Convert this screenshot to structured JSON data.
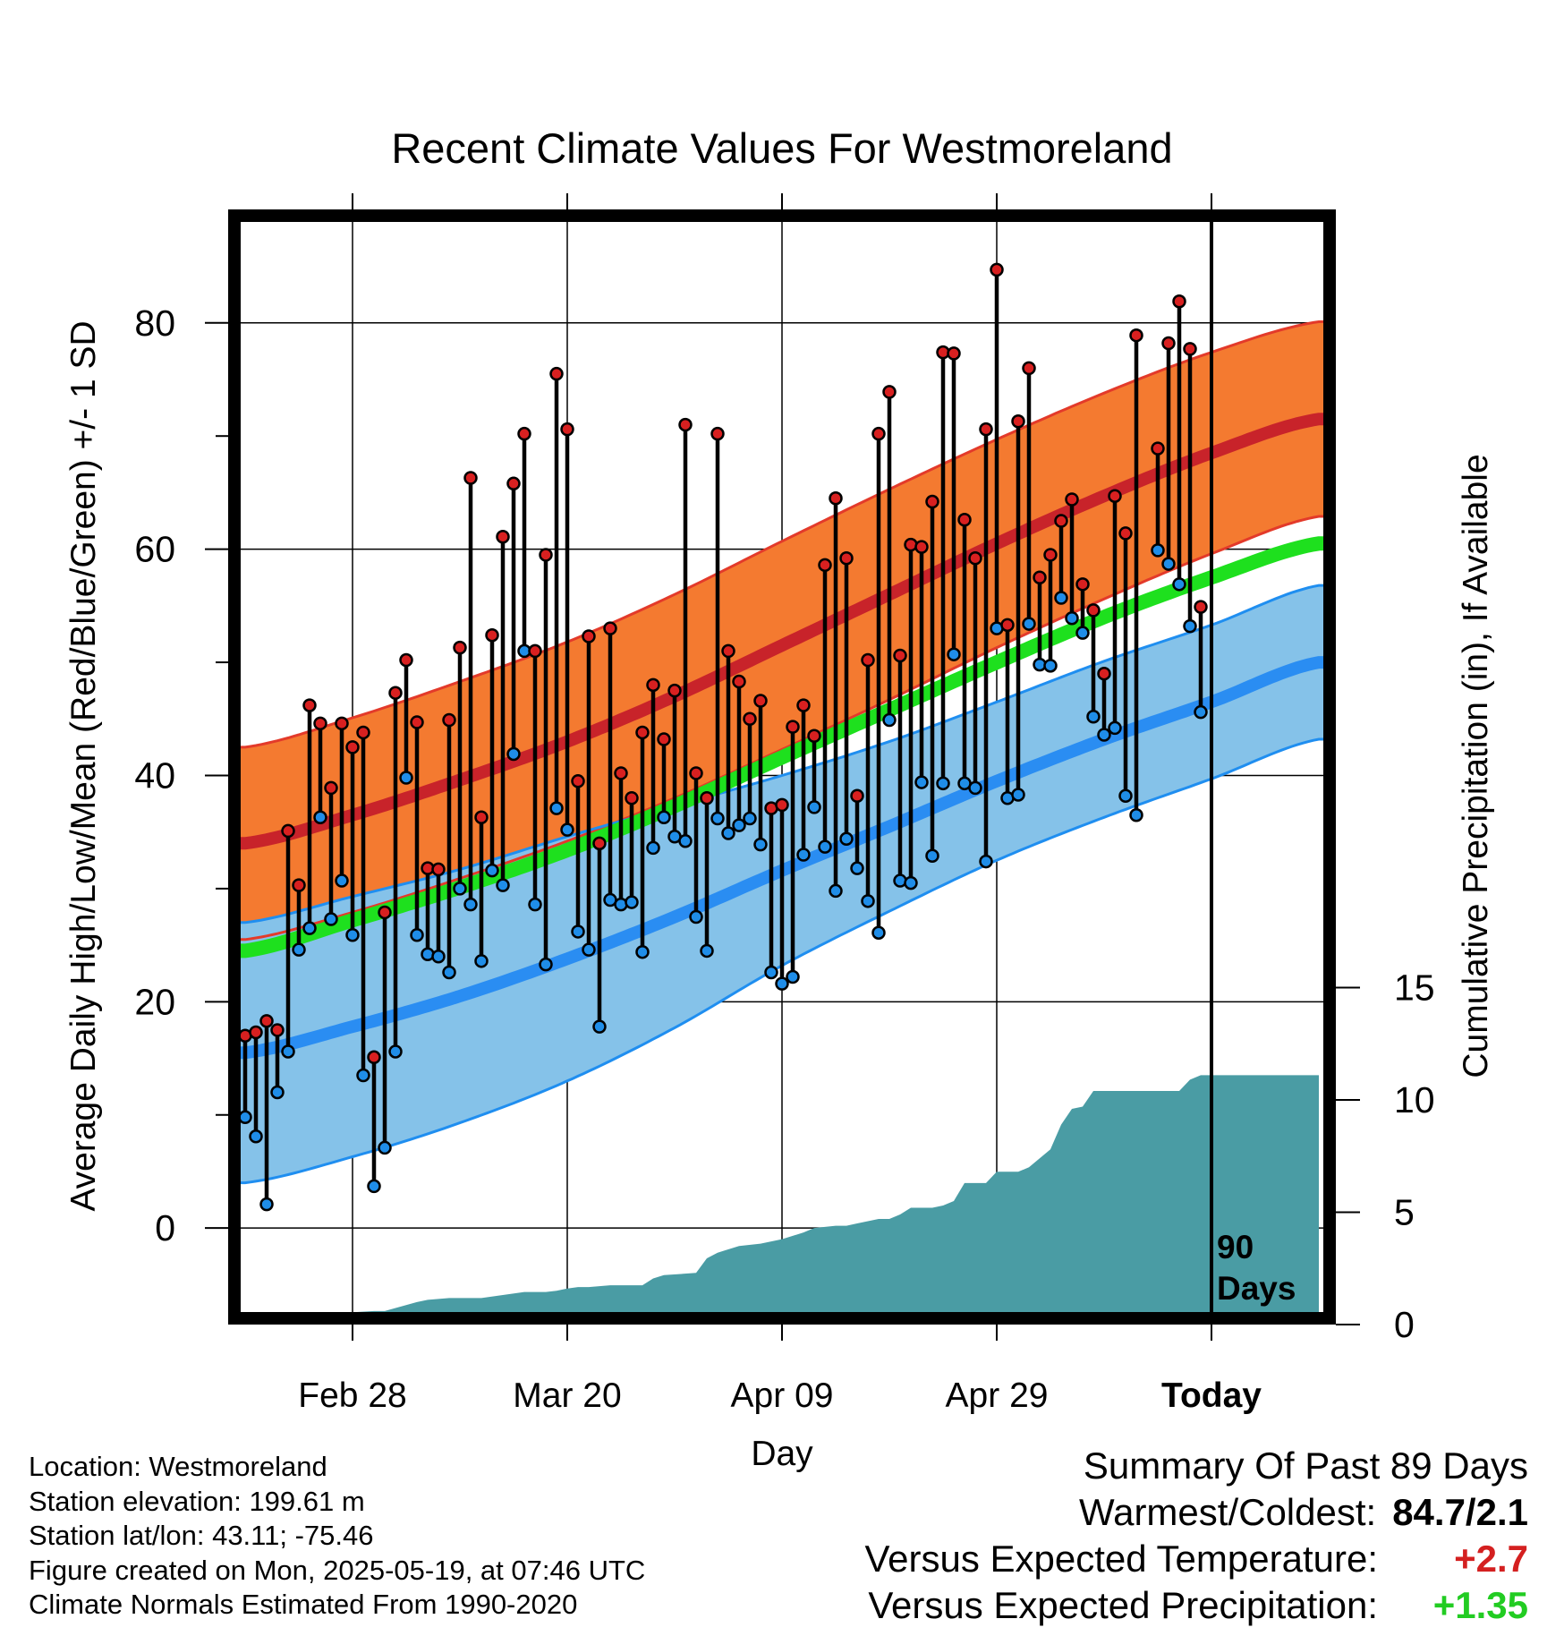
{
  "chart_data": {
    "type": "line",
    "title": "Recent Climate Values For Westmoreland",
    "xlabel": "Day",
    "ylabel": "Average Daily High/Low/Mean (Red/Blue/Green) +/- 1 SD",
    "y2label": "Cumulative Precipitation (in), If Available",
    "x_tick_labels": [
      "Feb 28",
      "Mar 20",
      "Apr 09",
      "Apr 29",
      "Today"
    ],
    "x_tick_days": [
      10,
      30,
      50,
      70,
      90
    ],
    "x_range_days": [
      -0.5,
      100.5
    ],
    "ylim": [
      -7.5,
      89
    ],
    "y_ticks": [
      0,
      20,
      40,
      60,
      80
    ],
    "y2lim": [
      0,
      28
    ],
    "y2_ticks": [
      0,
      5,
      10,
      15
    ],
    "today_day": 90,
    "today_label_line1": "90",
    "today_label_line2": "Days",
    "grid": true,
    "colors": {
      "high_band": "#f47a30",
      "high_mean": "#c8232a",
      "high_edge": "#e33a2a",
      "low_band": "#85c2e9",
      "low_mean": "#2a8df2",
      "low_edge": "#1f8ef0",
      "mean_normal": "#1ee01e",
      "precip": "#4a9ca4",
      "high_dot": "#d82020",
      "low_dot": "#1f8de8"
    },
    "normal_high": {
      "days": [
        0,
        10,
        20,
        30,
        40,
        50,
        60,
        70,
        80,
        90,
        100
      ],
      "values": [
        34.0,
        36.5,
        39.6,
        43.0,
        47.0,
        51.5,
        56.0,
        60.5,
        64.7,
        68.5,
        71.5
      ]
    },
    "normal_high_sd": [
      8.5,
      8.6,
      8.7,
      8.8,
      9.0,
      9.2,
      9.3,
      9.2,
      9.1,
      8.9,
      8.6
    ],
    "normal_low": {
      "days": [
        0,
        10,
        20,
        30,
        40,
        50,
        60,
        70,
        80,
        90,
        100
      ],
      "values": [
        15.5,
        17.8,
        20.5,
        23.8,
        27.5,
        31.6,
        35.5,
        39.5,
        43.2,
        46.5,
        50.0
      ]
    },
    "normal_low_sd": [
      11.5,
      11.5,
      11.2,
      10.8,
      9.8,
      8.4,
      7.5,
      7.0,
      6.9,
      6.8,
      6.8
    ],
    "normal_mean": {
      "days": [
        0,
        10,
        20,
        30,
        40,
        50,
        60,
        70,
        80,
        90,
        100
      ],
      "values": [
        24.5,
        27.2,
        30.1,
        33.4,
        37.3,
        41.6,
        45.8,
        50.0,
        54.0,
        57.5,
        60.5
      ]
    },
    "observed_days": [
      0,
      1,
      2,
      3,
      4,
      5,
      6,
      7,
      8,
      9,
      10,
      11,
      12,
      13,
      14,
      15,
      16,
      17,
      18,
      19,
      20,
      21,
      22,
      23,
      24,
      25,
      26,
      27,
      28,
      29,
      30,
      31,
      32,
      33,
      34,
      35,
      36,
      37,
      38,
      39,
      40,
      41,
      42,
      43,
      44,
      45,
      46,
      47,
      48,
      49,
      50,
      51,
      52,
      53,
      54,
      55,
      56,
      57,
      58,
      59,
      60,
      61,
      62,
      63,
      64,
      65,
      66,
      67,
      68,
      69,
      70,
      71,
      72,
      73,
      74,
      75,
      76,
      77,
      78,
      79,
      80,
      81,
      82,
      83,
      84,
      85,
      86,
      87,
      88,
      89
    ],
    "observed_high": [
      17.0,
      17.3,
      18.3,
      17.5,
      35.1,
      30.3,
      46.2,
      44.6,
      38.9,
      44.6,
      42.5,
      43.8,
      15.1,
      27.9,
      47.3,
      50.2,
      44.7,
      31.8,
      31.7,
      44.9,
      51.3,
      66.3,
      36.3,
      52.4,
      61.1,
      65.8,
      70.2,
      51.0,
      59.5,
      75.5,
      70.6,
      39.5,
      52.3,
      34.0,
      53.0,
      40.2,
      38.0,
      43.8,
      48.0,
      43.2,
      47.5,
      71.0,
      40.2,
      38.0,
      70.2,
      51.0,
      48.3,
      45.0,
      46.6,
      37.1,
      37.4,
      44.3,
      46.2,
      43.5,
      58.6,
      64.5,
      59.2,
      38.2,
      50.2,
      70.2,
      73.9,
      50.6,
      60.4,
      60.2,
      64.2,
      77.4,
      77.3,
      62.6,
      59.2,
      70.6,
      84.7,
      53.3,
      71.3,
      76.0,
      57.5,
      59.5,
      62.5,
      64.4,
      56.9,
      54.6,
      49.0,
      64.7,
      61.4,
      78.9,
      null,
      68.9,
      78.2,
      81.9,
      77.7,
      54.9
    ],
    "observed_low": [
      9.8,
      8.1,
      2.1,
      12.0,
      15.6,
      24.6,
      26.5,
      36.3,
      27.3,
      30.7,
      25.9,
      13.5,
      3.7,
      7.1,
      15.6,
      39.8,
      25.9,
      24.2,
      24.0,
      22.6,
      30.0,
      28.6,
      23.6,
      31.6,
      30.3,
      41.9,
      51.0,
      28.6,
      23.3,
      37.1,
      35.2,
      26.2,
      24.6,
      17.8,
      29.0,
      28.6,
      28.8,
      24.4,
      33.6,
      36.3,
      34.6,
      34.2,
      27.5,
      24.5,
      36.2,
      34.9,
      35.6,
      36.2,
      33.9,
      22.6,
      21.6,
      22.2,
      33.0,
      37.2,
      33.7,
      29.8,
      34.4,
      31.8,
      28.9,
      26.1,
      44.9,
      30.7,
      30.5,
      39.4,
      32.9,
      39.3,
      50.7,
      39.3,
      38.9,
      32.4,
      53.0,
      38.0,
      38.3,
      53.4,
      49.8,
      49.7,
      55.7,
      53.9,
      52.6,
      45.2,
      43.6,
      44.2,
      38.2,
      36.5,
      null,
      59.9,
      58.7,
      56.9,
      53.2,
      45.6
    ],
    "precip_days": [
      0,
      8,
      9,
      12,
      13,
      16,
      17,
      19,
      20,
      21,
      22,
      26,
      28,
      29,
      30,
      31,
      32,
      34,
      35,
      36,
      37,
      38,
      39,
      42,
      43,
      44,
      46,
      48,
      49,
      50,
      51,
      52,
      53,
      55,
      56,
      57,
      58,
      59,
      60,
      61,
      62,
      63,
      64,
      65,
      66,
      67,
      68,
      69,
      70,
      71,
      72,
      73,
      74,
      75,
      76,
      77,
      78,
      79,
      80,
      81,
      82,
      83,
      84,
      85,
      86,
      87,
      88,
      89,
      90,
      100
    ],
    "precip_cum": [
      0.0,
      0.0,
      0.45,
      0.6,
      0.6,
      1.0,
      1.1,
      1.18,
      1.18,
      1.18,
      1.18,
      1.45,
      1.45,
      1.5,
      1.6,
      1.67,
      1.67,
      1.75,
      1.75,
      1.75,
      1.75,
      2.05,
      2.2,
      2.3,
      2.95,
      3.2,
      3.5,
      3.6,
      3.7,
      3.8,
      3.95,
      4.1,
      4.3,
      4.4,
      4.4,
      4.5,
      4.6,
      4.7,
      4.7,
      4.9,
      5.2,
      5.2,
      5.2,
      5.3,
      5.5,
      6.3,
      6.3,
      6.3,
      6.8,
      6.8,
      6.8,
      7.0,
      7.4,
      7.8,
      8.9,
      9.6,
      9.7,
      10.4,
      10.4,
      10.4,
      10.4,
      10.4,
      10.4,
      10.4,
      10.4,
      10.4,
      10.9,
      11.1,
      11.1,
      11.1
    ]
  },
  "info": {
    "location": "Location: Westmoreland",
    "elevation": "Station elevation: 199.61 m",
    "latlon": "Station lat/lon: 43.11; -75.46",
    "created": "Figure created on Mon, 2025-05-19, at 07:46 UTC",
    "normals": "Climate Normals Estimated From 1990-2020"
  },
  "summary": {
    "heading": "Summary Of Past 89 Days",
    "warm_label": "Warmest/Coldest:",
    "warm_value": "84.7/2.1",
    "temp_label": "Versus Expected Temperature:",
    "temp_value": "+2.7",
    "precip_label": "Versus Expected Precipitation:",
    "precip_value": "+1.35"
  }
}
